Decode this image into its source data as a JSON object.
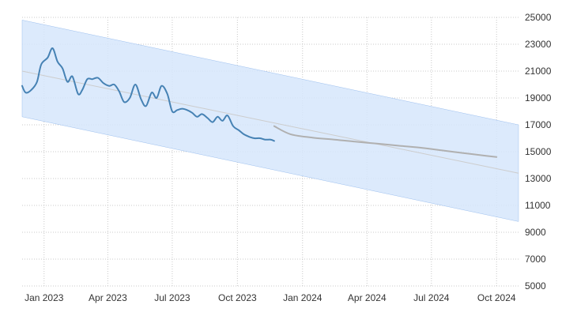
{
  "chart_data": {
    "type": "line",
    "title": "",
    "xlabel": "",
    "ylabel": "",
    "x_axis": {
      "min": "2022-12-01",
      "max": "2024-11-01",
      "ticks": [
        {
          "label": "Jan 2023",
          "date": "2023-01-01"
        },
        {
          "label": "Apr 2023",
          "date": "2023-04-01"
        },
        {
          "label": "Jul 2023",
          "date": "2023-07-01"
        },
        {
          "label": "Oct 2023",
          "date": "2023-10-01"
        },
        {
          "label": "Jan 2024",
          "date": "2024-01-01"
        },
        {
          "label": "Apr 2024",
          "date": "2024-04-01"
        },
        {
          "label": "Jul 2024",
          "date": "2024-07-01"
        },
        {
          "label": "Oct 2024",
          "date": "2024-10-01"
        }
      ]
    },
    "y_axis": {
      "min": 5000,
      "max": 25000,
      "position": "right",
      "ticks": [
        5000,
        7000,
        9000,
        11000,
        13000,
        15000,
        17000,
        19000,
        21000,
        23000,
        25000
      ]
    },
    "grid": true,
    "series": [
      {
        "color": "#4682b4",
        "x": [
          "2022-12-01",
          "2022-12-06",
          "2022-12-14",
          "2022-12-22",
          "2022-12-28",
          "2023-01-06",
          "2023-01-13",
          "2023-01-20",
          "2023-01-27",
          "2023-02-03",
          "2023-02-10",
          "2023-02-18",
          "2023-02-24",
          "2023-03-03",
          "2023-03-10",
          "2023-03-18",
          "2023-03-26",
          "2023-04-03",
          "2023-04-10",
          "2023-04-17",
          "2023-04-24",
          "2023-05-02",
          "2023-05-10",
          "2023-05-18",
          "2023-05-25",
          "2023-06-02",
          "2023-06-09",
          "2023-06-16",
          "2023-06-24",
          "2023-07-01",
          "2023-07-08",
          "2023-07-15",
          "2023-07-22",
          "2023-07-29",
          "2023-08-05",
          "2023-08-12",
          "2023-08-20",
          "2023-08-27",
          "2023-09-03",
          "2023-09-10",
          "2023-09-17",
          "2023-09-25",
          "2023-10-03",
          "2023-10-10",
          "2023-10-18",
          "2023-10-25",
          "2023-11-02",
          "2023-11-09",
          "2023-11-17",
          "2023-11-22"
        ],
        "y": [
          19900,
          19400,
          19600,
          20200,
          21500,
          22000,
          22700,
          21700,
          21200,
          20200,
          20600,
          19300,
          19600,
          20400,
          20400,
          20500,
          20100,
          19900,
          20000,
          19500,
          18700,
          19000,
          20000,
          18900,
          18400,
          19400,
          19000,
          19900,
          19300,
          18000,
          18100,
          18200,
          18100,
          17900,
          17600,
          17800,
          17500,
          17200,
          17600,
          17300,
          17700,
          16900,
          16600,
          16300,
          16100,
          16000,
          16000,
          15900,
          15900,
          15800
        ]
      },
      {
        "color": "#b0b0b0",
        "x": [
          "2023-11-22",
          "2023-12-15",
          "2024-01-15",
          "2024-02-15",
          "2024-03-15",
          "2024-04-15",
          "2024-05-15",
          "2024-06-15",
          "2024-07-15",
          "2024-08-15",
          "2024-09-15",
          "2024-10-01"
        ],
        "y": [
          16900,
          16300,
          16050,
          15900,
          15750,
          15600,
          15450,
          15300,
          15100,
          14900,
          14700,
          14600
        ]
      }
    ],
    "trend": {
      "color": "#cccccc",
      "start": {
        "x": "2022-12-01",
        "y": 21000
      },
      "end": {
        "x": "2024-11-01",
        "y": 13400
      }
    },
    "band": {
      "color": "#d6e6fb",
      "upper": {
        "start": {
          "x": "2022-12-01",
          "y": 24800
        },
        "end": {
          "x": "2024-11-01",
          "y": 17000
        }
      },
      "lower": {
        "start": {
          "x": "2022-12-01",
          "y": 17600
        },
        "end": {
          "x": "2024-11-01",
          "y": 9800
        }
      }
    }
  }
}
